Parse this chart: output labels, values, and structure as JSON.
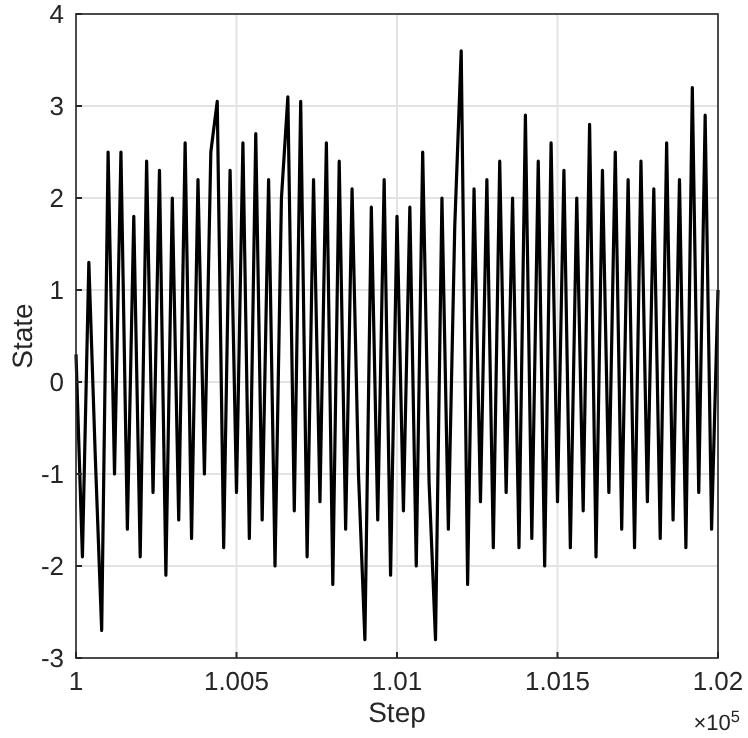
{
  "chart_data": {
    "type": "line",
    "xlabel": "Step",
    "ylabel": "State",
    "x": [
      1,
      1.0002,
      1.0004,
      1.0006,
      1.0008,
      1.001,
      1.0012,
      1.0014,
      1.0016,
      1.0018,
      1.002,
      1.0022,
      1.0024,
      1.0026,
      1.0028,
      1.003,
      1.0032,
      1.0034,
      1.0036,
      1.0038,
      1.004,
      1.0042,
      1.0044,
      1.0046,
      1.0048,
      1.005,
      1.0052,
      1.0054,
      1.0056,
      1.0058,
      1.006,
      1.0062,
      1.0064,
      1.0066,
      1.0068,
      1.007,
      1.0072,
      1.0074,
      1.0076,
      1.0078,
      1.008,
      1.0082,
      1.0084,
      1.0086,
      1.0088,
      1.009,
      1.0092,
      1.0094,
      1.0096,
      1.0098,
      1.01,
      1.0102,
      1.0104,
      1.0106,
      1.0108,
      1.011,
      1.0112,
      1.0114,
      1.0116,
      1.0118,
      1.012,
      1.0122,
      1.0124,
      1.0126,
      1.0128,
      1.013,
      1.0132,
      1.0134,
      1.0136,
      1.0138,
      1.014,
      1.0142,
      1.0144,
      1.0146,
      1.0148,
      1.015,
      1.0152,
      1.0154,
      1.0156,
      1.0158,
      1.016,
      1.0162,
      1.0164,
      1.0166,
      1.0168,
      1.017,
      1.0172,
      1.0174,
      1.0176,
      1.0178,
      1.018,
      1.0182,
      1.0184,
      1.0186,
      1.0188,
      1.019,
      1.0192,
      1.0194,
      1.0196,
      1.0198,
      1.02
    ],
    "series": [
      {
        "color": "#000000",
        "values": [
          0.3,
          -1.9,
          1.3,
          -0.8,
          -2.7,
          2.5,
          -1.0,
          2.5,
          -1.6,
          1.8,
          -1.9,
          2.4,
          -1.2,
          2.3,
          -2.1,
          2.0,
          -1.5,
          2.6,
          -1.7,
          2.2,
          -1.0,
          2.5,
          3.05,
          -1.8,
          2.3,
          -1.2,
          2.6,
          -1.7,
          2.7,
          -1.5,
          2.2,
          -2.0,
          2.0,
          3.1,
          -1.4,
          3.05,
          -1.9,
          2.2,
          -1.3,
          2.6,
          -2.2,
          2.4,
          -1.6,
          2.1,
          -1.0,
          -2.8,
          1.9,
          -1.5,
          2.2,
          -2.1,
          1.8,
          -1.4,
          1.9,
          -2.0,
          2.5,
          -1.1,
          -2.8,
          2.0,
          -1.6,
          1.7,
          3.6,
          -2.2,
          2.1,
          -1.3,
          2.2,
          -1.8,
          2.4,
          -1.2,
          2.0,
          -1.8,
          2.9,
          -1.7,
          2.4,
          -2.0,
          2.6,
          -1.3,
          2.3,
          -1.8,
          2.0,
          -1.4,
          2.8,
          -1.9,
          2.3,
          -1.2,
          2.5,
          -1.6,
          2.2,
          -1.8,
          2.4,
          -1.3,
          2.1,
          -1.7,
          2.6,
          -1.5,
          2.2,
          -1.8,
          3.2,
          -1.2,
          2.9,
          -1.6,
          1.0
        ]
      }
    ],
    "xlim": [
      1,
      1.02
    ],
    "xticks": [
      1,
      1.005,
      1.01,
      1.015,
      1.02
    ],
    "ylim": [
      -3,
      4
    ],
    "yticks": [
      -3,
      -2,
      -1,
      0,
      1,
      2,
      3,
      4
    ],
    "grid": true,
    "line_style": "solid",
    "marker": "none",
    "annotations": [
      "×10$^{5}$"
    ]
  }
}
